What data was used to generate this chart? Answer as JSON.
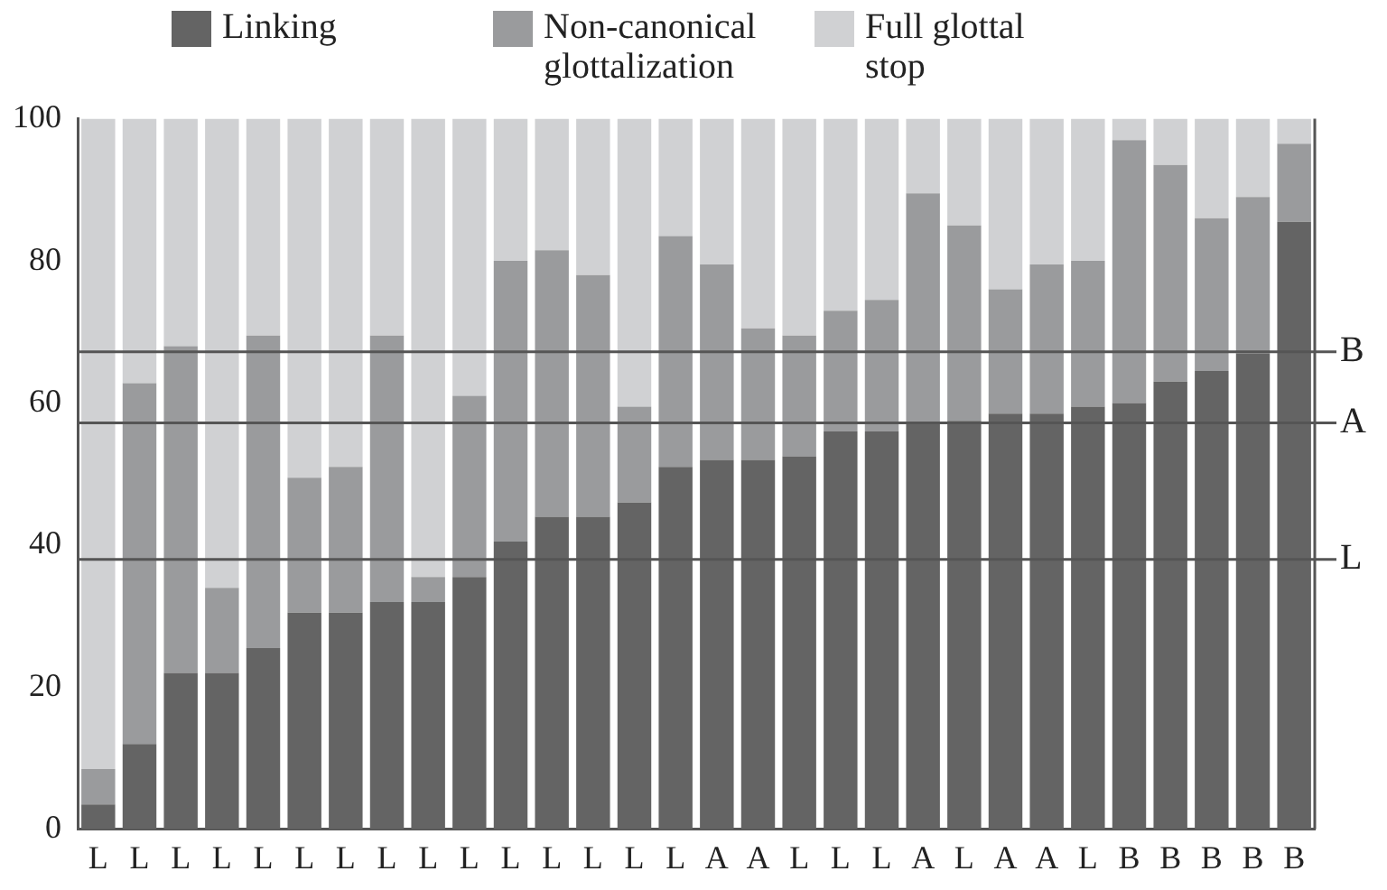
{
  "chart_data": {
    "type": "bar",
    "stacked": true,
    "legend": "top",
    "grid": false,
    "categories": [
      "L",
      "L",
      "L",
      "L",
      "L",
      "L",
      "L",
      "L",
      "L",
      "L",
      "L",
      "L",
      "L",
      "L",
      "L",
      "A",
      "A",
      "L",
      "L",
      "L",
      "A",
      "L",
      "A",
      "A",
      "L",
      "B",
      "B",
      "B",
      "B",
      "B"
    ],
    "series": [
      {
        "name": "Linking",
        "color": "#646464",
        "values": [
          3.5,
          12,
          22,
          22,
          25.5,
          30.5,
          30.5,
          32,
          32,
          35.5,
          40.5,
          44,
          44,
          46,
          51,
          52,
          52,
          52.5,
          56,
          56,
          57,
          57.5,
          58.5,
          58.5,
          59.5,
          60,
          63,
          64.5,
          67,
          85.5
        ]
      },
      {
        "name": "Non-canonical glottalization",
        "color": "#9a9b9d",
        "values": [
          5,
          50.8,
          46,
          12,
          44,
          19,
          20.5,
          37.5,
          3.5,
          25.5,
          39.5,
          37.5,
          34,
          13.5,
          32.5,
          27.5,
          18.5,
          17,
          17,
          18.5,
          32.5,
          27.5,
          17.5,
          21,
          20.5,
          37,
          30.5,
          21.5,
          22,
          11
        ]
      },
      {
        "name": "Full glottal stop",
        "color": "#d0d1d3",
        "values": [
          91.5,
          37.2,
          32,
          66,
          30.5,
          50.5,
          49,
          30.5,
          64.5,
          39,
          20,
          18.5,
          22,
          40.5,
          16.5,
          20.5,
          29.5,
          30.5,
          27,
          25.5,
          10.5,
          15,
          24,
          20.5,
          20,
          3,
          6.5,
          14,
          11,
          3.5
        ]
      }
    ],
    "ylim": [
      0,
      100
    ],
    "yticks": [
      0,
      20,
      40,
      60,
      80,
      100
    ],
    "ref_lines": [
      {
        "axis": "y",
        "value": 67.2,
        "label": "B",
        "color": "#555555"
      },
      {
        "axis": "y",
        "value": 57.2,
        "label": "A",
        "color": "#555555"
      },
      {
        "axis": "y",
        "value": 38,
        "label": "L",
        "color": "#555555"
      }
    ]
  }
}
